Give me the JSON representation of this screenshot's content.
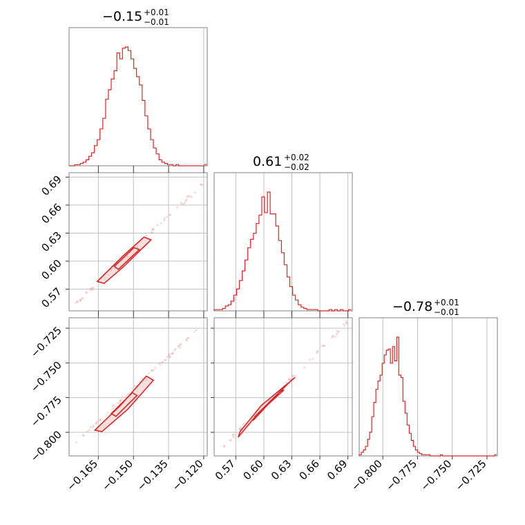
{
  "chart_data": {
    "type": "corner",
    "color": "#d62728",
    "grid": true,
    "parameters": [
      {
        "title": {
          "median": "−0.15",
          "plus": "+0.01",
          "minus": "−0.01"
        },
        "median": -0.1525,
        "sigma": 0.0055,
        "range": [
          -0.1775,
          -0.1185
        ],
        "ticks": [
          -0.165,
          -0.15,
          -0.135,
          -0.12
        ],
        "tick_labels": [
          "−0.165",
          "−0.150",
          "−0.135",
          "−0.120"
        ]
      },
      {
        "title": {
          "median": "0.61",
          "plus": "+0.02",
          "minus": "−0.02"
        },
        "median": 0.6055,
        "sigma": 0.0125,
        "range": [
          0.5468,
          0.6947
        ],
        "ticks": [
          0.57,
          0.6,
          0.63,
          0.66,
          0.69
        ],
        "tick_labels": [
          "0.57",
          "0.60",
          "0.63",
          "0.66",
          "0.69"
        ]
      },
      {
        "title": {
          "median": "−0.78",
          "plus": "+0.01",
          "minus": "−0.01"
        },
        "median": -0.7815,
        "sigma": 0.0068,
        "range": [
          -0.817,
          -0.7175
        ],
        "ticks": [
          -0.8,
          -0.775,
          -0.75,
          -0.725
        ],
        "tick_labels": [
          "−0.800",
          "−0.775",
          "−0.750",
          "−0.725"
        ]
      }
    ],
    "histograms": [
      {
        "bin_edges": [
          -0.1775,
          -0.1763,
          -0.1751,
          -0.1739,
          -0.1727,
          -0.1715,
          -0.1703,
          -0.1691,
          -0.1679,
          -0.1667,
          -0.1655,
          -0.1643,
          -0.1631,
          -0.1619,
          -0.1607,
          -0.1595,
          -0.1583,
          -0.1571,
          -0.1559,
          -0.1547,
          -0.1535,
          -0.1523,
          -0.1511,
          -0.1499,
          -0.1487,
          -0.1475,
          -0.1463,
          -0.1451,
          -0.1439,
          -0.1427,
          -0.1415,
          -0.1403,
          -0.1391,
          -0.1379,
          -0.1367,
          -0.1355,
          -0.1343,
          -0.1331,
          -0.1319,
          -0.1307,
          -0.1295,
          -0.1283,
          -0.1271,
          -0.1259,
          -0.1247,
          -0.1235,
          -0.1223,
          -0.1211,
          -0.1199,
          -0.1187
        ],
        "counts": [
          0,
          0,
          1,
          1,
          2,
          3,
          5,
          8,
          11,
          17,
          22,
          31,
          40,
          56,
          64,
          73,
          80,
          95,
          90,
          99,
          100,
          97,
          90,
          82,
          75,
          68,
          55,
          42,
          31,
          22,
          15,
          10,
          5,
          3,
          2,
          1,
          1,
          0,
          1,
          0,
          0,
          0,
          0,
          0,
          0,
          0,
          0,
          0,
          1
        ]
      },
      {
        "bin_edges": [
          0.5468,
          0.5498,
          0.5528,
          0.5558,
          0.5588,
          0.5618,
          0.5648,
          0.5678,
          0.5708,
          0.5738,
          0.5768,
          0.5798,
          0.5828,
          0.5858,
          0.5888,
          0.5918,
          0.5948,
          0.5978,
          0.6008,
          0.6038,
          0.6068,
          0.6098,
          0.6128,
          0.6158,
          0.6188,
          0.6218,
          0.6248,
          0.6278,
          0.6308,
          0.6338,
          0.6368,
          0.6398,
          0.6428,
          0.6458,
          0.6488,
          0.6518,
          0.6548,
          0.6578,
          0.6608,
          0.6638,
          0.6668,
          0.6698,
          0.6728,
          0.6758,
          0.6788,
          0.6818,
          0.6848,
          0.6878,
          0.6908,
          0.6938
        ],
        "counts": [
          1,
          1,
          1,
          2,
          4,
          5,
          8,
          13,
          18,
          25,
          33,
          42,
          52,
          59,
          64,
          72,
          79,
          94,
          81,
          98,
          80,
          80,
          70,
          58,
          48,
          38,
          28,
          20,
          13,
          9,
          5,
          3,
          2,
          1,
          1,
          1,
          1,
          0,
          0,
          0,
          0,
          1,
          0,
          1,
          0,
          1,
          0,
          0,
          1
        ]
      },
      {
        "bin_edges": [
          -0.817,
          -0.8155,
          -0.814,
          -0.8125,
          -0.811,
          -0.8095,
          -0.808,
          -0.8065,
          -0.805,
          -0.8035,
          -0.802,
          -0.8005,
          -0.799,
          -0.7975,
          -0.796,
          -0.7945,
          -0.793,
          -0.7915,
          -0.79,
          -0.7885,
          -0.787,
          -0.7855,
          -0.784,
          -0.7825,
          -0.781,
          -0.7795,
          -0.778,
          -0.7765,
          -0.775,
          -0.7735,
          -0.772,
          -0.7705,
          -0.769,
          -0.7675,
          -0.766,
          -0.7645,
          -0.763,
          -0.7615,
          -0.76,
          -0.7585,
          -0.757,
          -0.7555,
          -0.754,
          -0.7525,
          -0.751,
          -0.7495,
          -0.748,
          -0.7465,
          -0.745,
          -0.7435,
          -0.742,
          -0.7405,
          -0.739,
          -0.7375,
          -0.736,
          -0.7345,
          -0.733,
          -0.7315,
          -0.73,
          -0.7285,
          -0.727,
          -0.7255,
          -0.724,
          -0.7225,
          -0.721,
          -0.7195,
          -0.718
        ],
        "counts": [
          1,
          3,
          5,
          8,
          14,
          20,
          33,
          45,
          56,
          63,
          68,
          78,
          85,
          89,
          90,
          78,
          92,
          80,
          100,
          68,
          66,
          46,
          36,
          26,
          19,
          13,
          8,
          5,
          3,
          2,
          1,
          1,
          1,
          1,
          0,
          0,
          0,
          0,
          0,
          1,
          0,
          0,
          0,
          0,
          0,
          0,
          0,
          0,
          0,
          0,
          0,
          0,
          0,
          0,
          0,
          0,
          0,
          0,
          0,
          0,
          0,
          0,
          0,
          0,
          0,
          1
        ]
      }
    ],
    "pairs": [
      {
        "x_param": 0,
        "y_param": 1,
        "contour_levels": [
          [
            [
              -0.1625,
              0.5762
            ],
            [
              -0.1545,
              0.5935
            ],
            [
              -0.1425,
              0.6228
            ],
            [
              -0.1455,
              0.6258
            ],
            [
              -0.1545,
              0.6055
            ],
            [
              -0.1655,
              0.5782
            ]
          ],
          [
            [
              -0.1565,
              0.5912
            ],
            [
              -0.1475,
              0.6125
            ],
            [
              -0.1498,
              0.6145
            ],
            [
              -0.1582,
              0.5945
            ]
          ]
        ],
        "scatter_span": [
          [
            -0.1745,
            0.5555
          ],
          [
            -0.1195,
            0.6845
          ]
        ]
      },
      {
        "x_param": 0,
        "y_param": 2,
        "contour_levels": [
          [
            [
              -0.1635,
              -0.7995
            ],
            [
              -0.1525,
              -0.7835
            ],
            [
              -0.1415,
              -0.7625
            ],
            [
              -0.1445,
              -0.7595
            ],
            [
              -0.1555,
              -0.7805
            ],
            [
              -0.1665,
              -0.7985
            ]
          ],
          [
            [
              -0.1575,
              -0.7885
            ],
            [
              -0.1485,
              -0.7735
            ],
            [
              -0.1505,
              -0.7715
            ],
            [
              -0.1595,
              -0.7865
            ]
          ]
        ],
        "scatter_span": [
          [
            -0.1745,
            -0.8065
          ],
          [
            -0.1195,
            -0.7215
          ]
        ]
      },
      {
        "x_param": 1,
        "y_param": 2,
        "contour_levels": [
          [
            [
              0.5725,
              -0.8035
            ],
            [
              0.5935,
              -0.7865
            ],
            [
              0.6295,
              -0.7625
            ],
            [
              0.6335,
              -0.7605
            ],
            [
              0.5975,
              -0.7805
            ],
            [
              0.5745,
              -0.7995
            ]
          ],
          [
            [
              0.5885,
              -0.7915
            ],
            [
              0.6175,
              -0.7705
            ],
            [
              0.6215,
              -0.7695
            ],
            [
              0.5905,
              -0.7885
            ]
          ]
        ],
        "scatter_span": [
          [
            0.5515,
            -0.8135
          ],
          [
            0.6905,
            -0.7205
          ]
        ]
      }
    ]
  }
}
